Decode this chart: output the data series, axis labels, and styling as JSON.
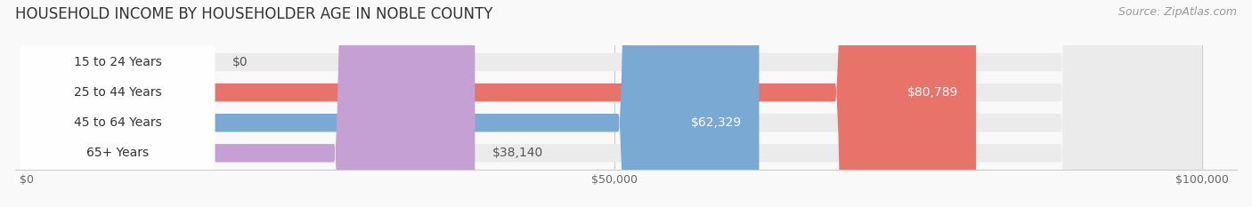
{
  "title": "HOUSEHOLD INCOME BY HOUSEHOLDER AGE IN NOBLE COUNTY",
  "source": "Source: ZipAtlas.com",
  "categories": [
    "15 to 24 Years",
    "25 to 44 Years",
    "45 to 64 Years",
    "65+ Years"
  ],
  "values": [
    0,
    80789,
    62329,
    38140
  ],
  "bar_colors": [
    "#f5c9a0",
    "#e8736a",
    "#7aaad4",
    "#c4a0d4"
  ],
  "bar_bg_color": "#ebebeb",
  "xlim_max": 100000,
  "xticks": [
    0,
    50000,
    100000
  ],
  "xtick_labels": [
    "$0",
    "$50,000",
    "$100,000"
  ],
  "value_labels": [
    "$0",
    "$80,789",
    "$62,329",
    "$38,140"
  ],
  "title_fontsize": 12,
  "source_fontsize": 9,
  "label_fontsize": 10,
  "value_fontsize": 10,
  "bar_height": 0.6,
  "background_color": "#f9f9f9"
}
